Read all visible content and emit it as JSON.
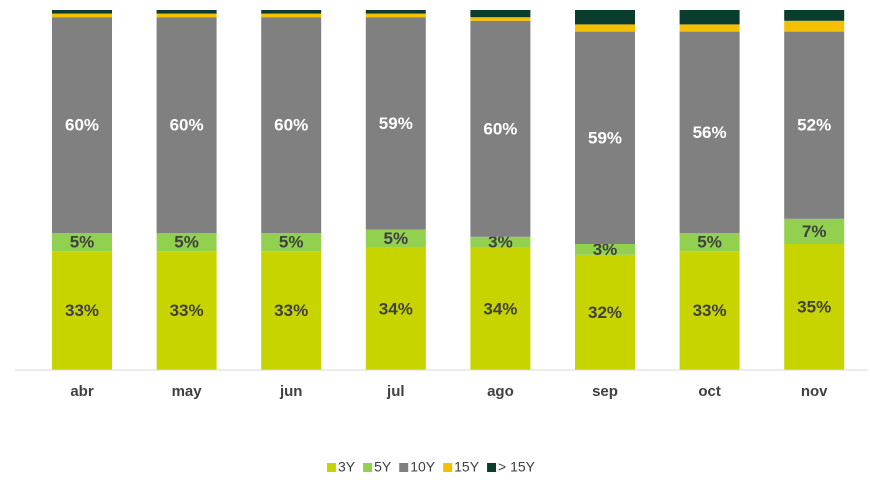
{
  "chart_data": {
    "type": "stacked_bar_100",
    "categories": [
      "abr",
      "may",
      "jun",
      "jul",
      "ago",
      "sep",
      "oct",
      "nov"
    ],
    "ylim": [
      0,
      100
    ],
    "series": [
      {
        "name": "3Y",
        "color": "#c8d400",
        "values": [
          33,
          33,
          33,
          34,
          34,
          32,
          33,
          35
        ],
        "value_labels": [
          "33%",
          "33%",
          "33%",
          "34%",
          "34%",
          "32%",
          "33%",
          "35%"
        ]
      },
      {
        "name": "5Y",
        "color": "#92d050",
        "values": [
          5,
          5,
          5,
          5,
          3,
          3,
          5,
          7
        ],
        "value_labels": [
          "5%",
          "5%",
          "5%",
          "5%",
          "3%",
          "3%",
          "5%",
          "7%"
        ]
      },
      {
        "name": "10Y",
        "color": "#808080",
        "values": [
          60,
          60,
          60,
          59,
          60,
          59,
          56,
          52
        ],
        "value_labels": [
          "60%",
          "60%",
          "60%",
          "59%",
          "60%",
          "59%",
          "56%",
          "52%"
        ]
      },
      {
        "name": "15Y",
        "color": "#f5c000",
        "values": [
          1,
          1,
          1,
          1,
          1,
          2,
          2,
          3
        ]
      },
      {
        "name": "> 15Y",
        "color": "#0b3d2e",
        "values": [
          1,
          1,
          1,
          1,
          2,
          4,
          4,
          3
        ]
      }
    ],
    "legend": "bottom"
  }
}
